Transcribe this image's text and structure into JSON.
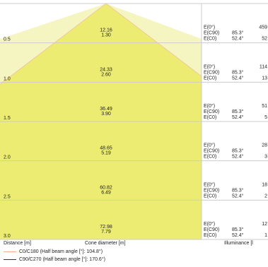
{
  "chart_data": {
    "type": "table",
    "title": "",
    "rows": [
      {
        "distance": "0.5",
        "cone_c0c180": "12.16",
        "cone_c90c270": "1.30",
        "e0_value": "459",
        "ec90_angle": "85.3°",
        "ec90_value": "",
        "ec0_angle": "52.4°",
        "ec0_value": "52"
      },
      {
        "distance": "1.0",
        "cone_c0c180": "24.33",
        "cone_c90c270": "2.60",
        "e0_value": "114",
        "ec90_angle": "85.3°",
        "ec90_value": "",
        "ec0_angle": "52.4°",
        "ec0_value": "13"
      },
      {
        "distance": "1.5",
        "cone_c0c180": "36.49",
        "cone_c90c270": "3.90",
        "e0_value": "51",
        "ec90_angle": "85.3°",
        "ec90_value": "",
        "ec0_angle": "52.4°",
        "ec0_value": "5"
      },
      {
        "distance": "2.0",
        "cone_c0c180": "48.65",
        "cone_c90c270": "5.19",
        "e0_value": "28",
        "ec90_angle": "85.3°",
        "ec90_value": "",
        "ec0_angle": "52.4°",
        "ec0_value": "3"
      },
      {
        "distance": "2.5",
        "cone_c0c180": "60.82",
        "cone_c90c270": "6.49",
        "e0_value": "18",
        "ec90_angle": "85.3°",
        "ec90_value": "",
        "ec0_angle": "52.4°",
        "ec0_value": "2"
      },
      {
        "distance": "3.0",
        "cone_c0c180": "72.98",
        "cone_c90c270": "7.79",
        "e0_value": "12",
        "ec90_angle": "85.3°",
        "ec90_value": "",
        "ec0_angle": "52.4°",
        "ec0_value": "1"
      }
    ],
    "row_labels": {
      "e0": "E(0°)",
      "ec90": "E(C90)",
      "ec0": "E(C0)"
    },
    "axis_labels": {
      "distance": "Distance [m]",
      "cone": "Cone diameter [m]",
      "illuminance": "Illuminance [l"
    },
    "legend": [
      {
        "label": "C0/C180 (Half beam angle [°]: 104.8°)",
        "color": "#f0b090"
      },
      {
        "label": "C90/C270 (Half beam angle [°]: 170.6°)",
        "color": "#333333"
      }
    ],
    "half_beam_angles_deg": {
      "c0c180": 104.8,
      "c90c270": 170.6
    }
  },
  "colors": {
    "cone_outer": "#f5f5c2",
    "cone_inner": "#ecec72",
    "grid": "#cccccc",
    "beam_outline": "#f0c89a"
  }
}
